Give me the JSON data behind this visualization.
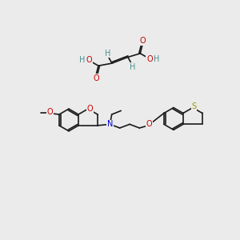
{
  "bg_color": "#ebebeb",
  "atom_colors": {
    "H": "#4a9090",
    "O": "#cc0000",
    "N": "#0000cc",
    "S": "#999900"
  },
  "bond_color": "#1a1a1a",
  "lw": 1.2,
  "fs": 7.0,
  "ring_r": 18
}
